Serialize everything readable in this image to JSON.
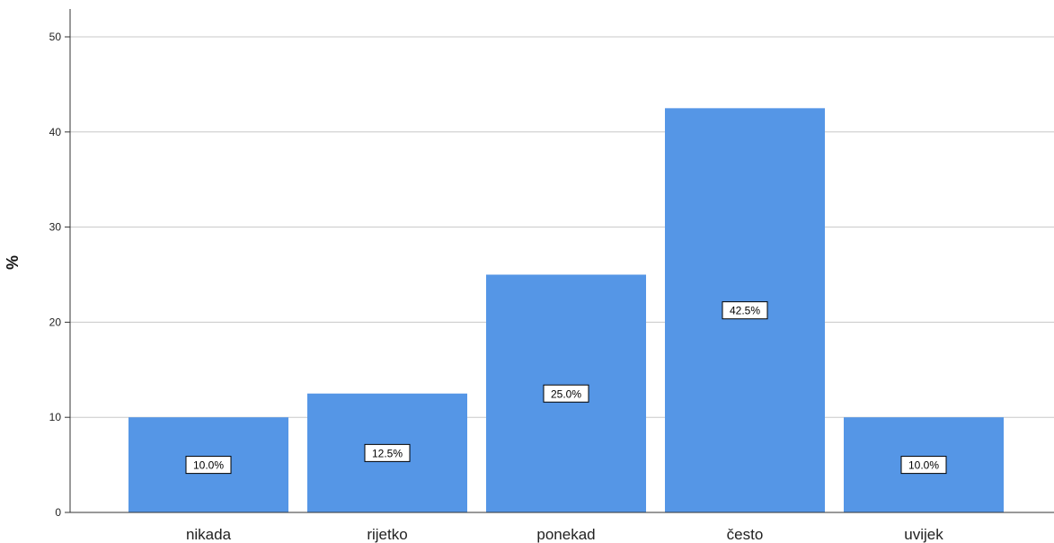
{
  "chart_data": {
    "type": "bar",
    "title": "",
    "xlabel": "",
    "ylabel": "%",
    "categories": [
      "nikada",
      "rijetko",
      "ponekad",
      "često",
      "uvijek"
    ],
    "values": [
      10.0,
      12.5,
      25.0,
      42.5,
      10.0
    ],
    "data_labels": [
      "10.0%",
      "12.5%",
      "25.0%",
      "42.5%",
      "10.0%"
    ],
    "y_ticks": [
      "0",
      "10",
      "20",
      "30",
      "40",
      "50"
    ],
    "ylim": [
      0,
      50
    ],
    "grid": true,
    "legend": "none",
    "bar_color": "#5596e6",
    "grid_color": "#c8c8c8"
  }
}
